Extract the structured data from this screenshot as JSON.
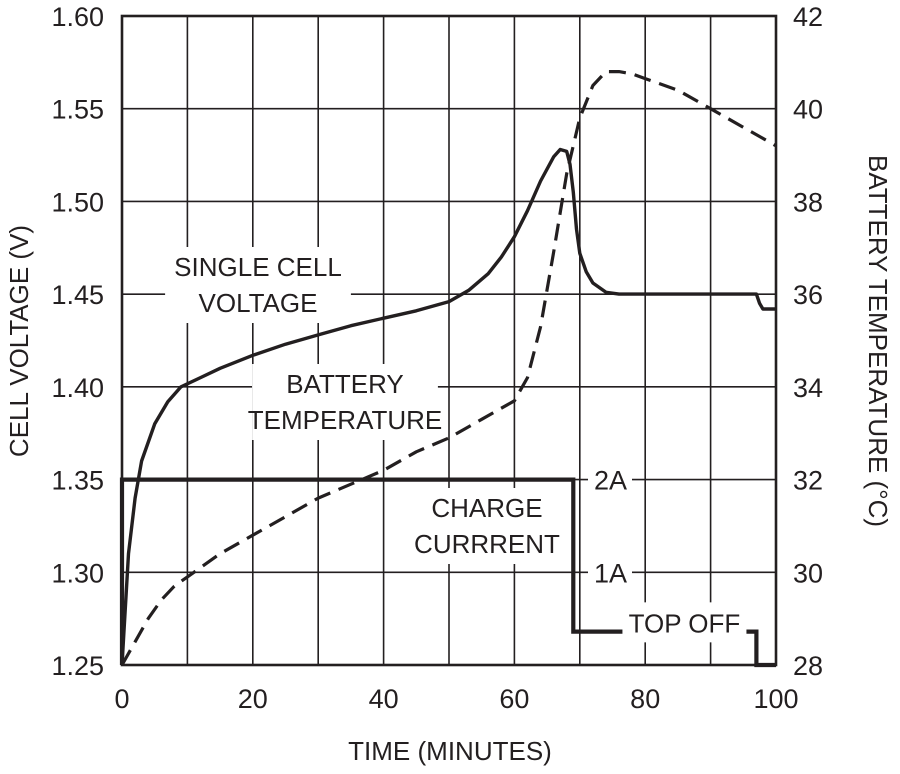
{
  "chart_data": {
    "type": "line",
    "xlabel": "TIME (MINUTES)",
    "ylabel_left": "CELL VOLTAGE (V)",
    "ylabel_right": "BATTERY TEMPERATURE (°C)",
    "x_range": [
      0,
      100
    ],
    "y_left_range": [
      1.25,
      1.6
    ],
    "y_right_range": [
      28,
      42
    ],
    "grid": true,
    "x_ticks": [
      {
        "value": 0,
        "label": "0"
      },
      {
        "value": 20,
        "label": "20"
      },
      {
        "value": 40,
        "label": "40"
      },
      {
        "value": 60,
        "label": "60"
      },
      {
        "value": 80,
        "label": "80"
      },
      {
        "value": 100,
        "label": "100"
      }
    ],
    "y_left_ticks": [
      {
        "value": 1.25,
        "label": "1.25"
      },
      {
        "value": 1.3,
        "label": "1.30"
      },
      {
        "value": 1.35,
        "label": "1.35"
      },
      {
        "value": 1.4,
        "label": "1.40"
      },
      {
        "value": 1.45,
        "label": "1.45"
      },
      {
        "value": 1.5,
        "label": "1.50"
      },
      {
        "value": 1.55,
        "label": "1.55"
      },
      {
        "value": 1.6,
        "label": "1.60"
      }
    ],
    "y_right_ticks": [
      {
        "value": 28,
        "label": "28"
      },
      {
        "value": 30,
        "label": "30"
      },
      {
        "value": 32,
        "label": "32"
      },
      {
        "value": 34,
        "label": "34"
      },
      {
        "value": 36,
        "label": "36"
      },
      {
        "value": 38,
        "label": "38"
      },
      {
        "value": 40,
        "label": "40"
      },
      {
        "value": 42,
        "label": "42"
      }
    ],
    "current_ticks": [
      {
        "value": 2,
        "label": "2A"
      },
      {
        "value": 1,
        "label": "1A"
      }
    ],
    "series": [
      {
        "name": "SINGLE CELL VOLTAGE",
        "label_lines": [
          "SINGLE CELL",
          "VOLTAGE"
        ],
        "axis": "left",
        "style": "solid",
        "x": [
          0,
          1,
          2,
          3,
          5,
          7,
          9,
          12,
          15,
          20,
          25,
          30,
          35,
          40,
          45,
          50,
          53,
          56,
          58,
          60,
          62,
          64,
          66,
          67,
          68,
          68.5,
          69,
          69.5,
          70,
          71,
          72,
          74,
          76,
          78,
          80,
          90,
          97,
          97.5,
          98,
          99,
          100
        ],
        "y": [
          1.25,
          1.31,
          1.34,
          1.36,
          1.38,
          1.392,
          1.4,
          1.405,
          1.41,
          1.417,
          1.423,
          1.428,
          1.433,
          1.437,
          1.441,
          1.446,
          1.452,
          1.461,
          1.47,
          1.481,
          1.495,
          1.511,
          1.524,
          1.528,
          1.527,
          1.52,
          1.505,
          1.485,
          1.472,
          1.462,
          1.456,
          1.451,
          1.45,
          1.45,
          1.45,
          1.45,
          1.45,
          1.445,
          1.442,
          1.442,
          1.442
        ]
      },
      {
        "name": "BATTERY TEMPERATURE",
        "label_lines": [
          "BATTERY",
          "TEMPERATURE"
        ],
        "axis": "right",
        "style": "dashed",
        "x": [
          0,
          2,
          4,
          6,
          8,
          10,
          15,
          20,
          25,
          30,
          35,
          40,
          45,
          50,
          55,
          60,
          62,
          64,
          66,
          68,
          70,
          72,
          74,
          76,
          78,
          80,
          85,
          90,
          95,
          100
        ],
        "y": [
          28.0,
          28.5,
          29.0,
          29.4,
          29.7,
          29.9,
          30.4,
          30.8,
          31.2,
          31.6,
          31.9,
          32.2,
          32.6,
          32.9,
          33.3,
          33.7,
          34.2,
          35.3,
          36.9,
          38.6,
          39.8,
          40.5,
          40.8,
          40.8,
          40.75,
          40.65,
          40.4,
          40.0,
          39.6,
          39.2
        ]
      },
      {
        "name": "CHARGE CURRRENT",
        "label_lines": [
          "CHARGE",
          "CURRRENT"
        ],
        "axis": "current",
        "style": "solid-thick",
        "x": [
          0,
          0,
          69,
          69,
          97,
          97,
          100
        ],
        "y": [
          0,
          2,
          2,
          0.36,
          0.36,
          0,
          0
        ]
      }
    ],
    "annotations": [
      {
        "text": "TOP OFF",
        "x": 86,
        "y_left": 1.273
      }
    ]
  }
}
